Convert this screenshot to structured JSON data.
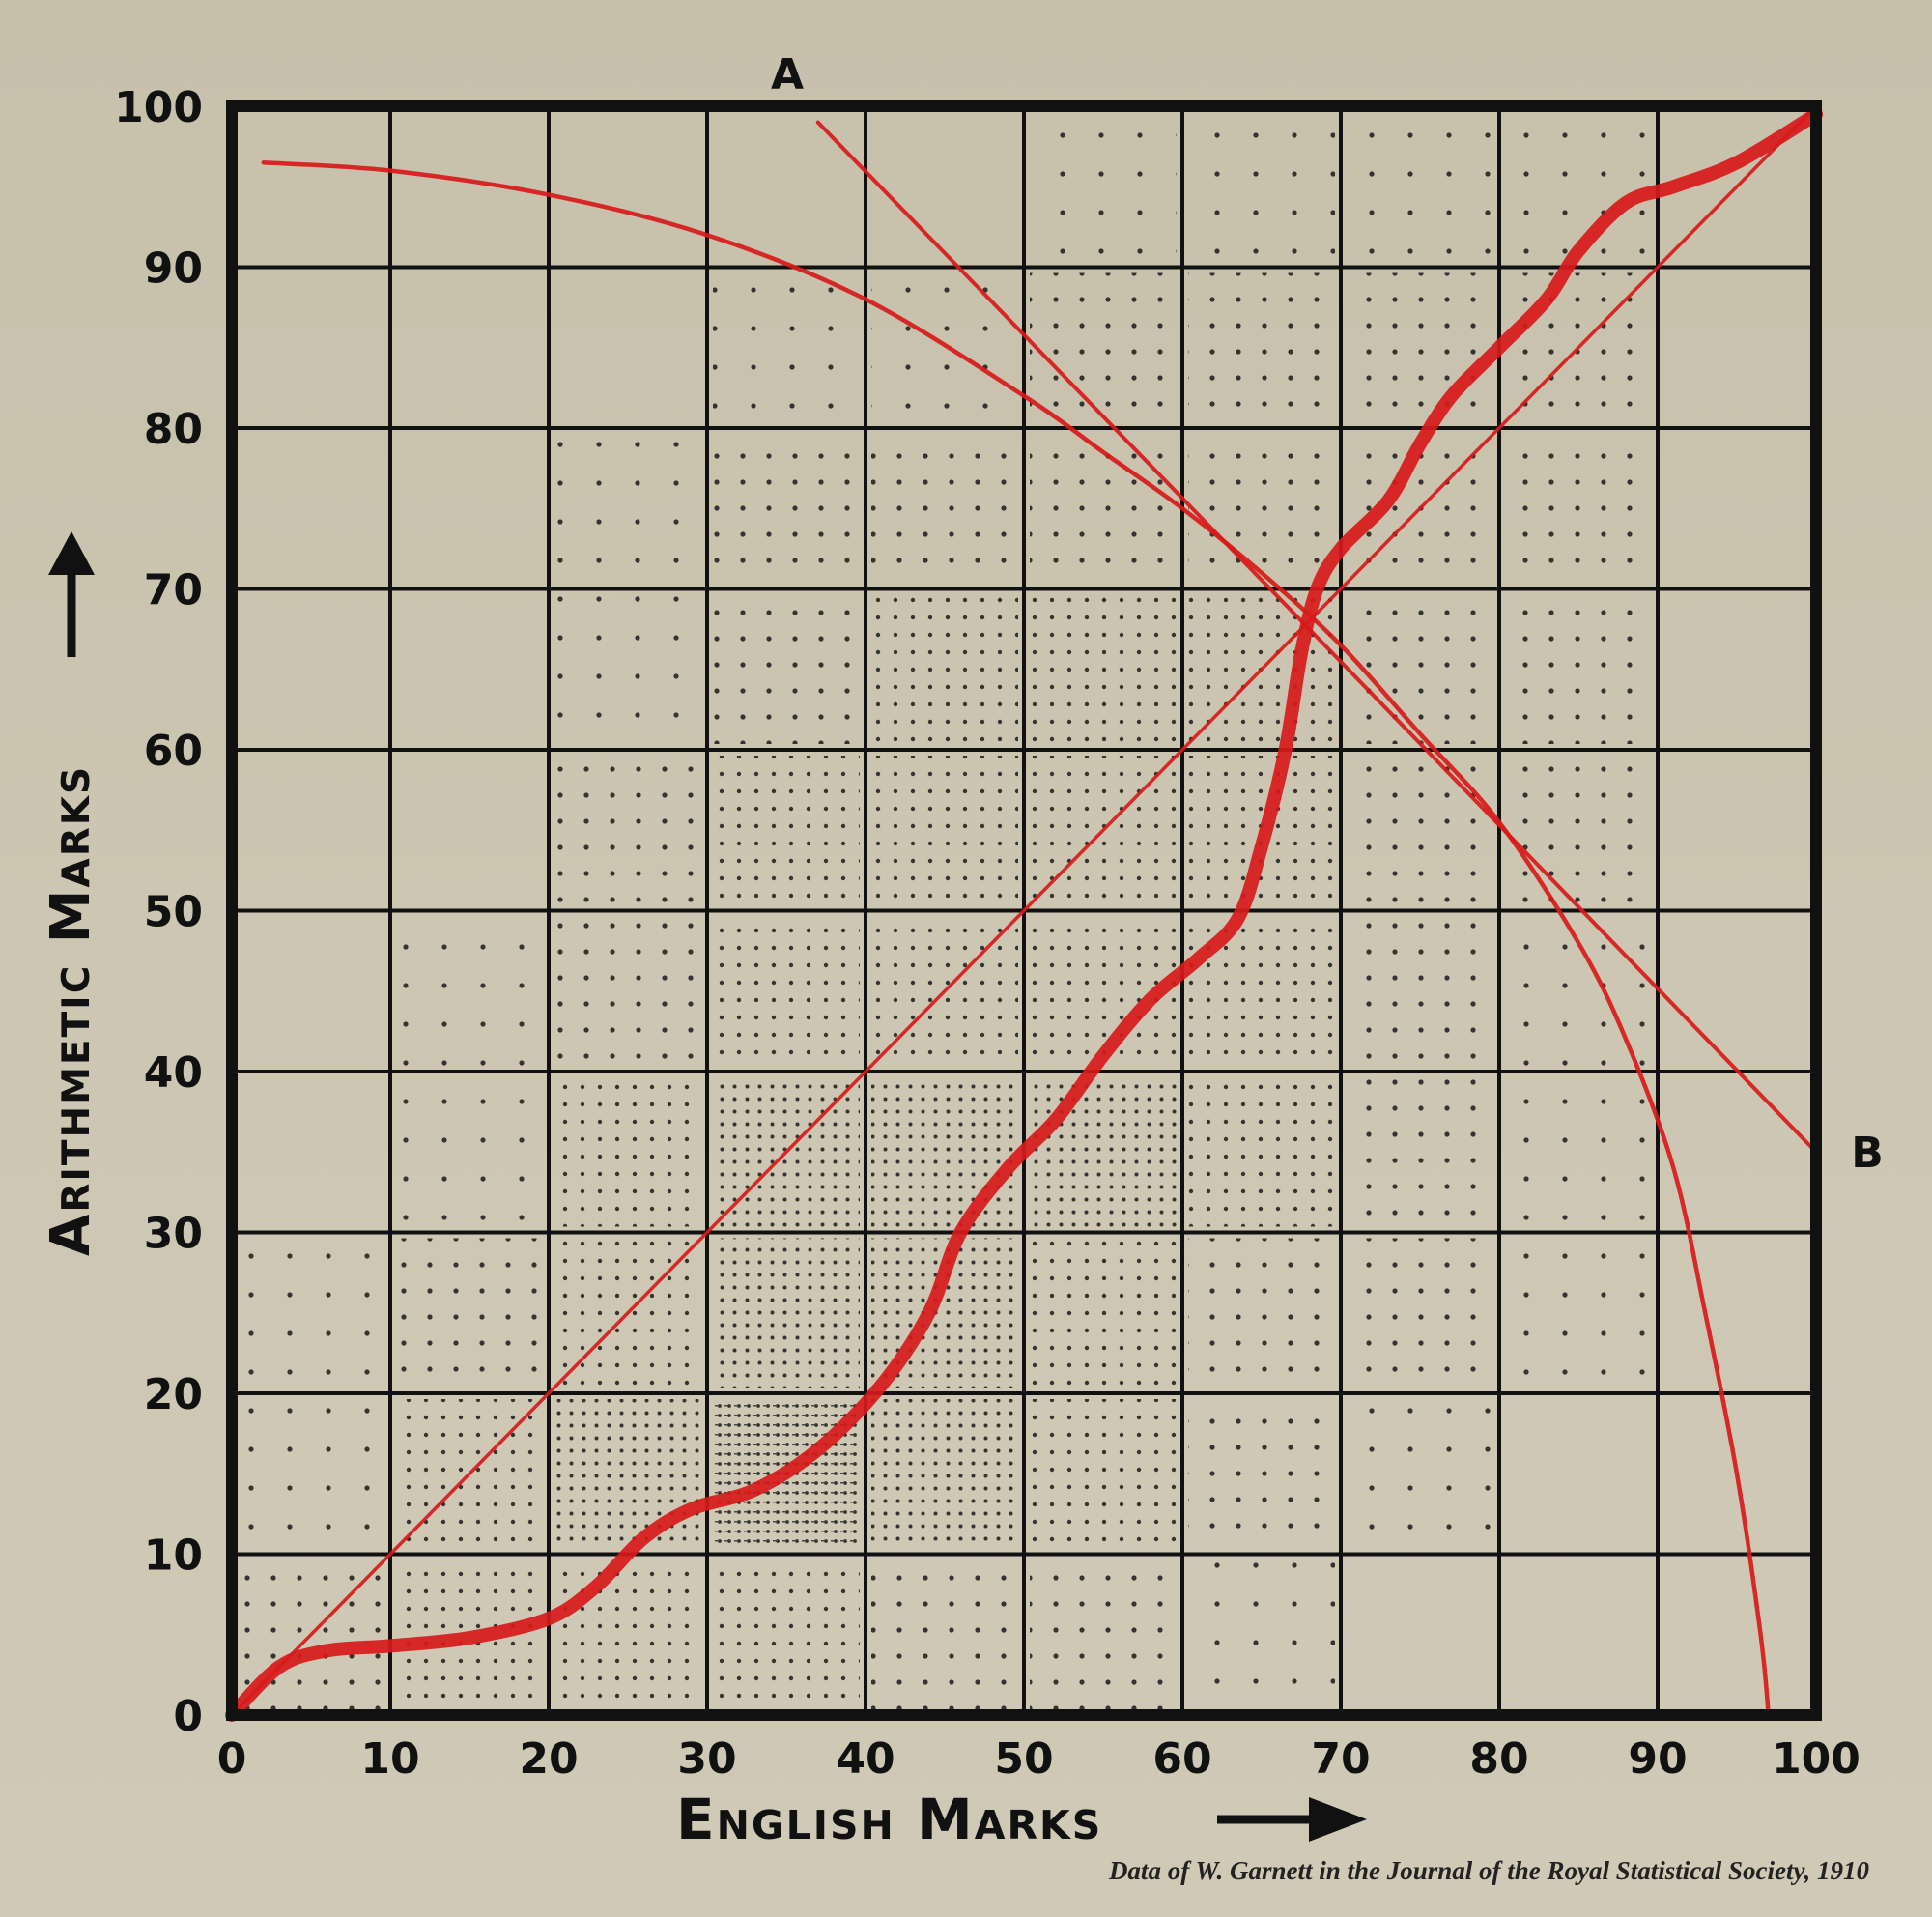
{
  "chart_data": {
    "type": "heatmap",
    "title": "",
    "xlabel": "English Marks",
    "ylabel": "Arithmetic Marks",
    "caption": "Data of W. Garnett in the Journal of the Royal Statistical Society, 1910",
    "xlim": [
      0,
      100
    ],
    "ylim": [
      0,
      100
    ],
    "x_ticks": [
      0,
      10,
      20,
      30,
      40,
      50,
      60,
      70,
      80,
      90,
      100
    ],
    "y_ticks": [
      0,
      10,
      20,
      30,
      40,
      50,
      60,
      70,
      80,
      90,
      100
    ],
    "grid": true,
    "annotations": [
      {
        "label": "A",
        "x": 35,
        "y": 102
      },
      {
        "label": "B",
        "x": 103,
        "y": 35
      }
    ],
    "density_note": "Dot density per 10x10 cell (0 = empty, 5 = densest); rows listed from Arithmetic 90-100 (top) down to 0-10 (bottom), columns English 0-10 .. 90-100",
    "density_rows": [
      {
        "y_range": "90-100",
        "values": [
          0,
          0,
          0,
          0,
          0,
          1,
          1,
          1,
          1,
          0
        ]
      },
      {
        "y_range": "80-90",
        "values": [
          0,
          0,
          0,
          1,
          1,
          2,
          2,
          2,
          2,
          0
        ]
      },
      {
        "y_range": "70-80",
        "values": [
          0,
          0,
          1,
          2,
          2,
          2,
          2,
          2,
          2,
          0
        ]
      },
      {
        "y_range": "60-70",
        "values": [
          0,
          0,
          1,
          2,
          3,
          3,
          3,
          2,
          2,
          0
        ]
      },
      {
        "y_range": "50-60",
        "values": [
          0,
          0,
          2,
          3,
          3,
          3,
          3,
          2,
          2,
          0
        ]
      },
      {
        "y_range": "40-50",
        "values": [
          0,
          1,
          2,
          3,
          3,
          3,
          3,
          2,
          1,
          0
        ]
      },
      {
        "y_range": "30-40",
        "values": [
          0,
          1,
          3,
          4,
          4,
          4,
          3,
          2,
          1,
          0
        ]
      },
      {
        "y_range": "20-30",
        "values": [
          1,
          2,
          3,
          4,
          4,
          3,
          2,
          2,
          1,
          0
        ]
      },
      {
        "y_range": "10-20",
        "values": [
          1,
          3,
          4,
          5,
          4,
          3,
          2,
          1,
          0,
          0
        ]
      },
      {
        "y_range": "0-10",
        "values": [
          2,
          3,
          3,
          3,
          2,
          2,
          1,
          0,
          0,
          0
        ]
      }
    ],
    "series": [
      {
        "name": "Diagonal (equal marks)",
        "type": "line",
        "color": "#d71a1a",
        "points": [
          [
            0,
            0
          ],
          [
            100,
            100
          ]
        ]
      },
      {
        "name": "Regression curve (thick S-curve)",
        "type": "line",
        "color": "#d71a1a",
        "points": [
          [
            0,
            0
          ],
          [
            3,
            3
          ],
          [
            6,
            4
          ],
          [
            10,
            4.3
          ],
          [
            15,
            4.8
          ],
          [
            20,
            6
          ],
          [
            23,
            8
          ],
          [
            26,
            11
          ],
          [
            29,
            12.8
          ],
          [
            33,
            14
          ],
          [
            37,
            16.5
          ],
          [
            41,
            20.5
          ],
          [
            44,
            25
          ],
          [
            46,
            30
          ],
          [
            49,
            34
          ],
          [
            52,
            37
          ],
          [
            55,
            41
          ],
          [
            58,
            44.5
          ],
          [
            61,
            47
          ],
          [
            63.5,
            49.5
          ],
          [
            65,
            54
          ],
          [
            66.5,
            60
          ],
          [
            67.5,
            66
          ],
          [
            68.5,
            70
          ],
          [
            70,
            72.5
          ],
          [
            73,
            75.5
          ],
          [
            75,
            79
          ],
          [
            77,
            82
          ],
          [
            80,
            85
          ],
          [
            83,
            88
          ],
          [
            85,
            91
          ],
          [
            88,
            94
          ],
          [
            91,
            95
          ],
          [
            95,
            96.5
          ],
          [
            100,
            99.5
          ]
        ]
      },
      {
        "name": "Upper-left arc",
        "type": "line",
        "color": "#d71a1a",
        "points": [
          [
            2,
            96.5
          ],
          [
            10,
            96
          ],
          [
            20,
            94.5
          ],
          [
            30,
            92
          ],
          [
            40,
            88
          ],
          [
            50,
            82
          ],
          [
            55,
            78.5
          ],
          [
            60,
            75
          ],
          [
            65,
            71
          ],
          [
            70,
            66.5
          ],
          [
            75,
            61
          ],
          [
            80,
            55.5
          ],
          [
            85,
            48
          ],
          [
            88,
            42
          ],
          [
            91,
            34
          ],
          [
            93,
            25
          ],
          [
            95,
            15
          ],
          [
            96.5,
            5
          ],
          [
            97,
            0
          ]
        ]
      },
      {
        "name": "Line A-B",
        "type": "line",
        "color": "#d71a1a",
        "points": [
          [
            37,
            99
          ],
          [
            100,
            35
          ]
        ]
      }
    ]
  },
  "labels": {
    "x_axis_title": "English Marks",
    "y_axis_title": "Arithmetic Marks",
    "marker_a": "A",
    "marker_b": "B",
    "caption": "Data of W. Garnett in the Journal of the Royal Statistical Society, 1910"
  }
}
